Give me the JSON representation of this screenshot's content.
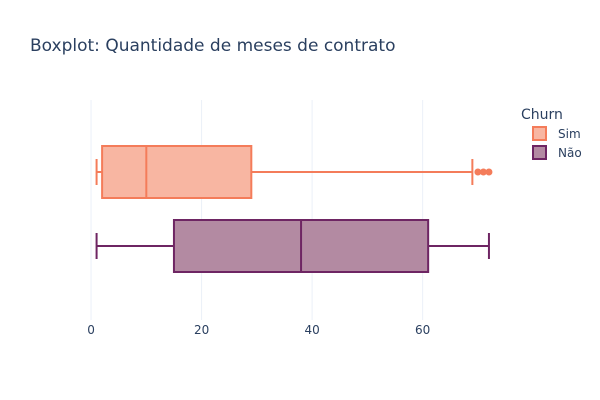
{
  "chart_data": {
    "type": "box",
    "orientation": "horizontal",
    "title": "Boxplot: Quantidade de meses de contrato",
    "xlabel": "",
    "ylabel": "",
    "xlim": [
      -2,
      74
    ],
    "x_ticks": [
      0,
      20,
      40,
      60
    ],
    "grid": true,
    "legend": {
      "title": "Churn",
      "position": "top-right"
    },
    "series": [
      {
        "name": "Sim",
        "color": "#f47c5a",
        "fill": "#f8b6a2",
        "lower_whisker": 1,
        "q1": 2,
        "median": 10,
        "q3": 29,
        "upper_whisker": 69,
        "outliers": [
          70,
          71,
          72
        ]
      },
      {
        "name": "Não",
        "color": "#6e2563",
        "fill": "#b38aa2",
        "lower_whisker": 1,
        "q1": 15,
        "median": 38,
        "q3": 61,
        "upper_whisker": 72,
        "outliers": []
      }
    ]
  }
}
